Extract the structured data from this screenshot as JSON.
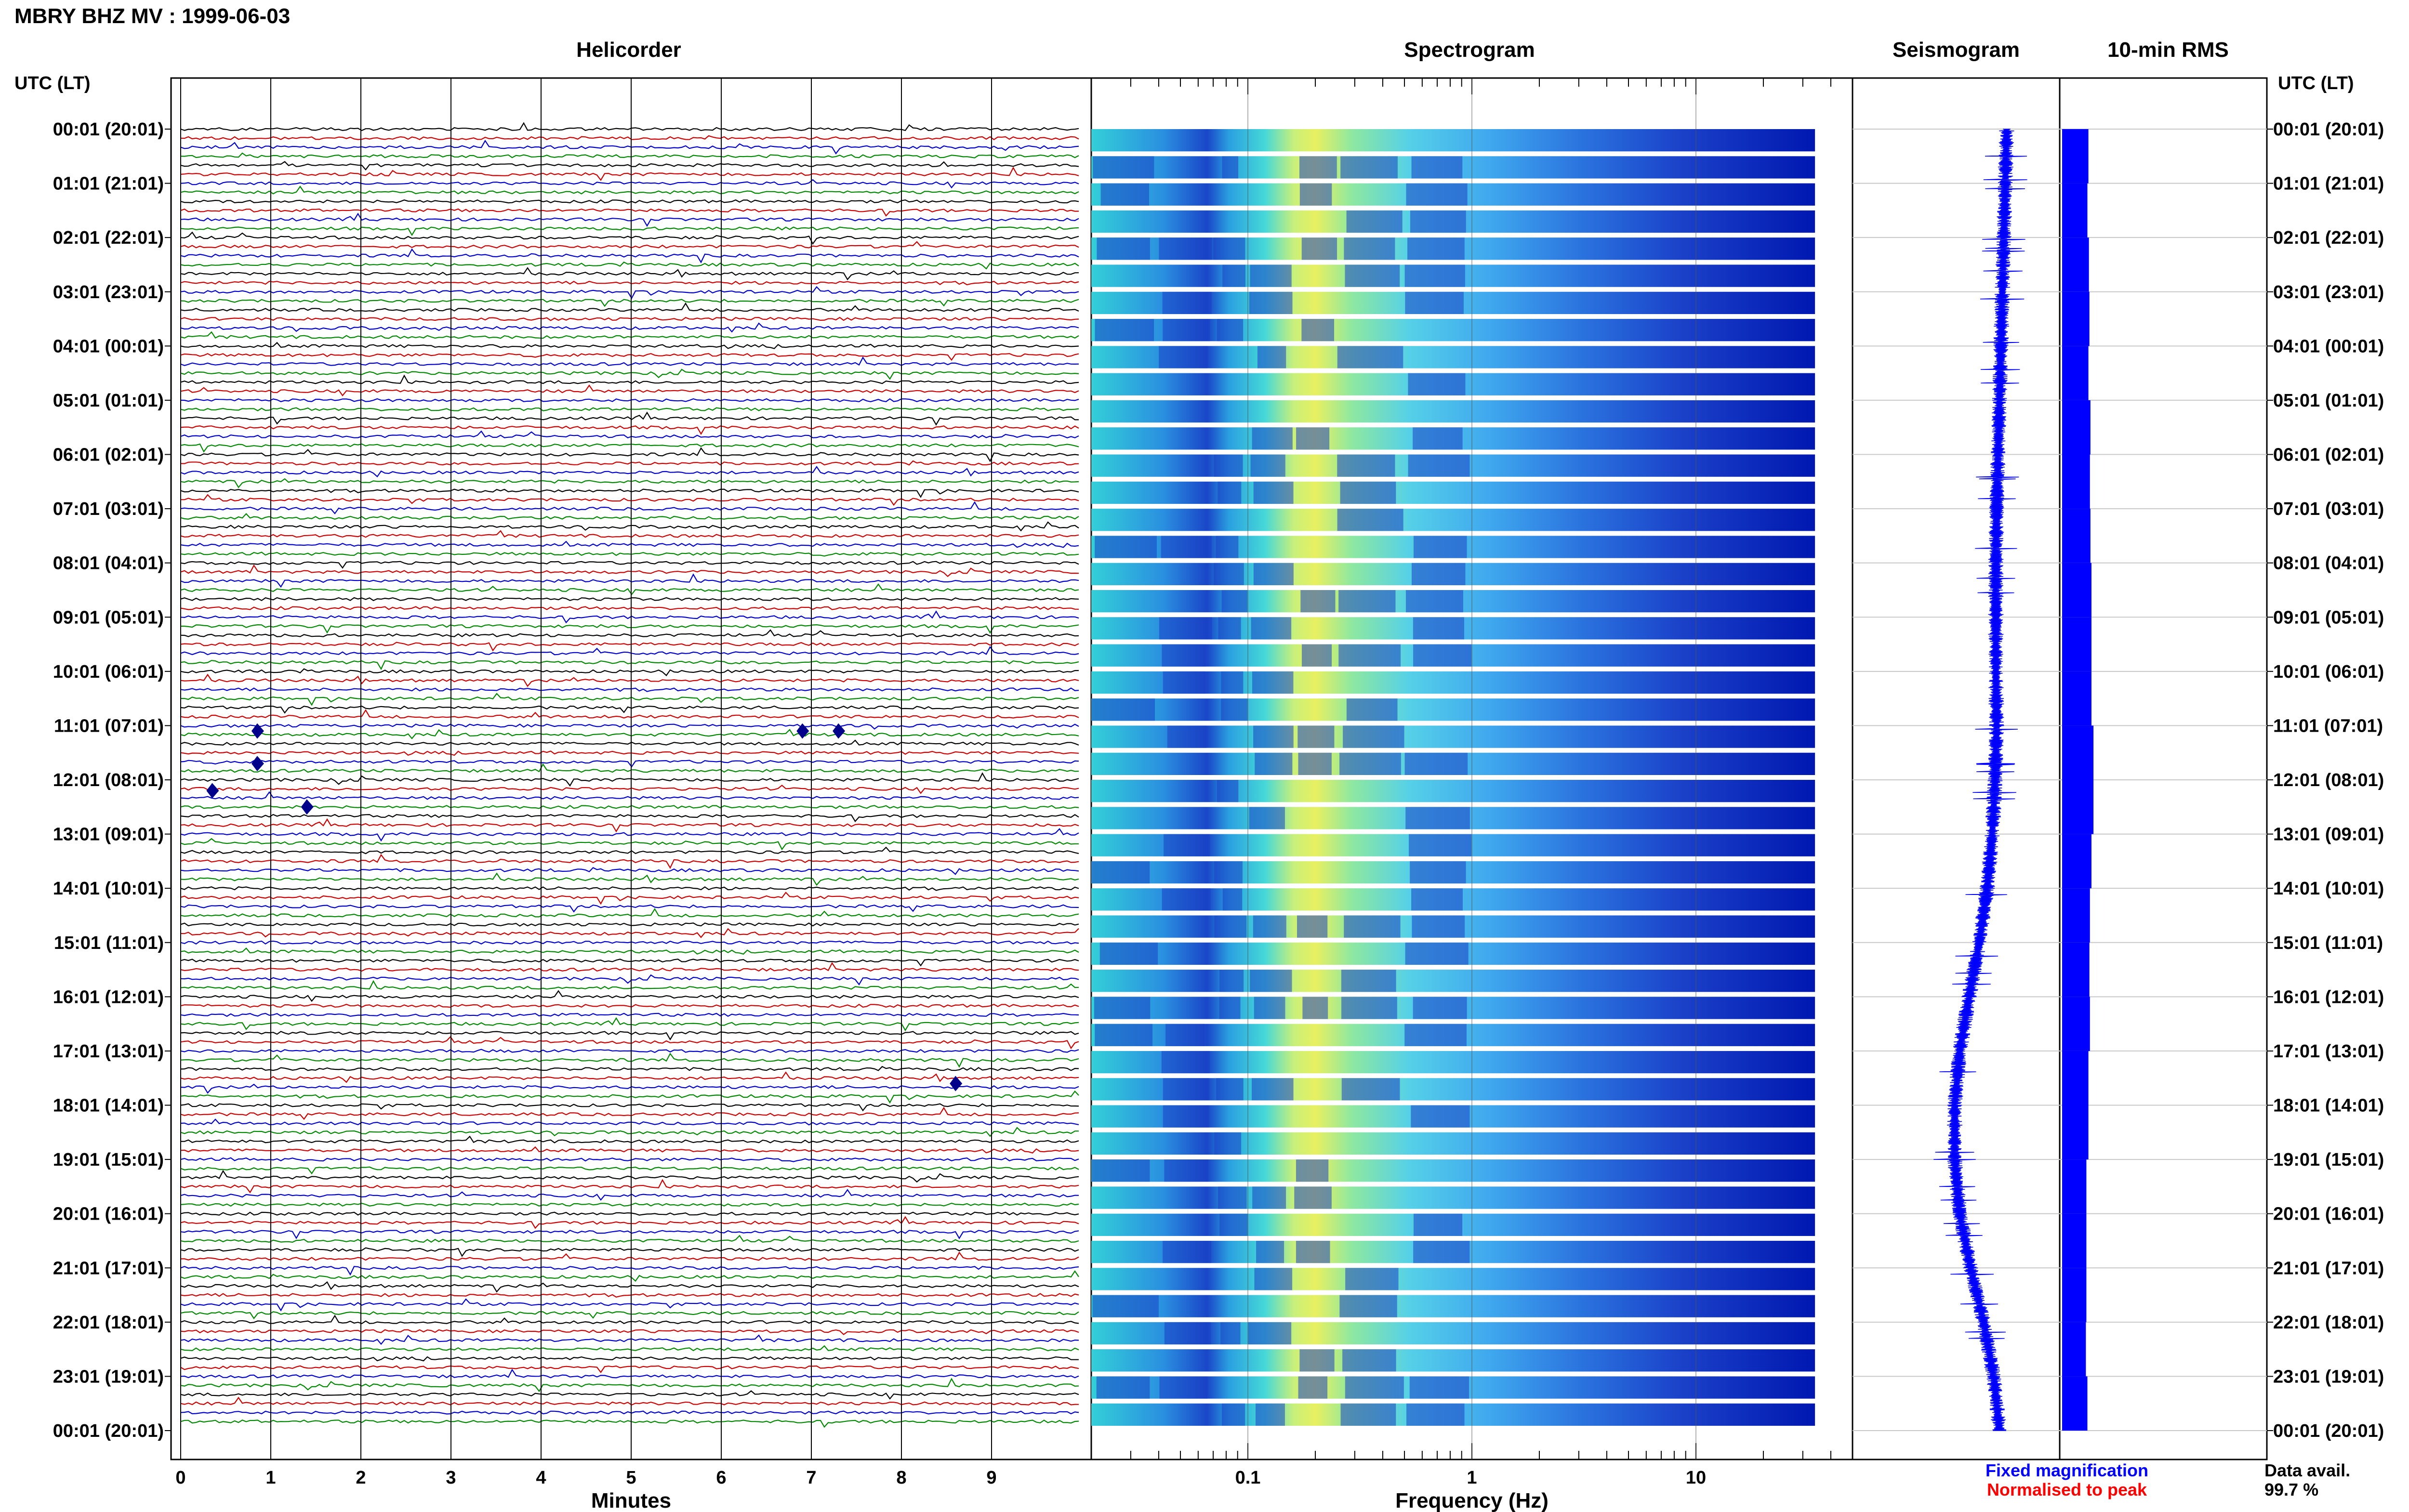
{
  "page_title": "MBRY BHZ MV : 1999-06-03",
  "utc_header_left": "UTC (LT)",
  "utc_header_right": "UTC (LT)",
  "panels": {
    "helicorder": "Helicorder",
    "spectrogram": "Spectrogram",
    "seismogram": "Seismogram",
    "rms": "10-min RMS"
  },
  "hour_labels": [
    "00:01 (20:01)",
    "01:01 (21:01)",
    "02:01 (22:01)",
    "03:01 (23:01)",
    "04:01 (00:01)",
    "05:01 (01:01)",
    "06:01 (02:01)",
    "07:01 (03:01)",
    "08:01 (04:01)",
    "09:01 (05:01)",
    "10:01 (06:01)",
    "11:01 (07:01)",
    "12:01 (08:01)",
    "13:01 (09:01)",
    "14:01 (10:01)",
    "15:01 (11:01)",
    "16:01 (12:01)",
    "17:01 (13:01)",
    "18:01 (14:01)",
    "19:01 (15:01)",
    "20:01 (16:01)",
    "21:01 (17:01)",
    "22:01 (18:01)",
    "23:01 (19:01)",
    "00:01 (20:01)"
  ],
  "footer": {
    "fixed_magnification": "Fixed magnification",
    "normalised_to_peak": "Normalised to peak",
    "data_avail_label": "Data avail.",
    "data_avail_value": "99.7 %"
  },
  "colors": {
    "trace_colors": [
      "#000000",
      "#cc0000",
      "#0000cc",
      "#008800"
    ],
    "fixed_magnification": "#0000ff",
    "normalised_to_peak": "#ff0000",
    "rms_bar": "#0000ff",
    "seismogram": "#0000ff",
    "spectrogram_low": "#0000cc",
    "spectrogram_high": "#ffff66"
  },
  "chart_data": [
    {
      "type": "line",
      "panel": "helicorder",
      "xlabel": "Minutes",
      "xlim": [
        0,
        10
      ],
      "x_ticks": [
        0,
        1,
        2,
        3,
        4,
        5,
        6,
        7,
        8,
        9
      ],
      "x_tick_labels": [
        "0",
        "1",
        "2",
        "3",
        "4",
        "5",
        "6",
        "7",
        "8",
        "9"
      ],
      "rows_per_hour": 6,
      "total_rows": 144,
      "events": [
        {
          "hour": 11.1,
          "minute": 0.85
        },
        {
          "hour": 11.1,
          "minute": 6.9
        },
        {
          "hour": 11.1,
          "minute": 7.3
        },
        {
          "hour": 11.7,
          "minute": 0.85
        },
        {
          "hour": 12.2,
          "minute": 0.35
        },
        {
          "hour": 12.5,
          "minute": 1.4
        },
        {
          "hour": 17.6,
          "minute": 8.6
        }
      ]
    },
    {
      "type": "heatmap",
      "panel": "spectrogram",
      "xlabel": "Frequency (Hz)",
      "x_scale": "log",
      "xlim": [
        0.02,
        50
      ],
      "x_ticks": [
        0.1,
        1,
        10
      ],
      "x_tick_labels": [
        "0.1",
        "1",
        "10"
      ],
      "data_upper_hz": 34,
      "peak_band_hz": [
        0.18,
        0.45
      ]
    },
    {
      "type": "line",
      "panel": "seismogram",
      "hours": [
        0,
        1,
        2,
        3,
        4,
        5,
        6,
        7,
        8,
        9,
        10,
        11,
        12,
        13,
        14,
        15,
        16,
        17,
        18,
        19,
        20,
        21,
        22,
        23,
        24
      ],
      "offset": [
        0.6,
        0.58,
        0.56,
        0.54,
        0.52,
        0.5,
        0.48,
        0.46,
        0.45,
        0.45,
        0.45,
        0.46,
        0.44,
        0.4,
        0.33,
        0.22,
        0.08,
        -0.05,
        -0.12,
        -0.12,
        -0.05,
        0.1,
        0.28,
        0.42,
        0.5
      ]
    },
    {
      "type": "bar",
      "panel": "rms",
      "hours": [
        0,
        1,
        2,
        3,
        4,
        5,
        6,
        7,
        8,
        9,
        10,
        11,
        12,
        13,
        14,
        15,
        16,
        17,
        18,
        19,
        20,
        21,
        22,
        23
      ],
      "values": [
        0.52,
        0.5,
        0.53,
        0.54,
        0.52,
        0.56,
        0.55,
        0.56,
        0.58,
        0.58,
        0.58,
        0.62,
        0.62,
        0.58,
        0.55,
        0.54,
        0.55,
        0.52,
        0.52,
        0.48,
        0.48,
        0.48,
        0.47,
        0.5
      ],
      "xlim": [
        0,
        1
      ]
    }
  ]
}
